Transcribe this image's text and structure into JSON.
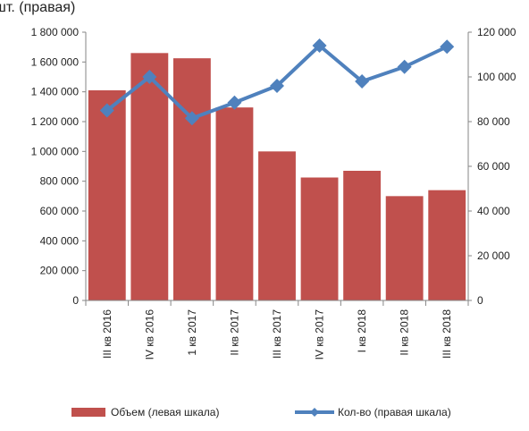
{
  "title_fragment": "шт. (правая)",
  "chart_data": {
    "type": "bar+line",
    "categories": [
      "III кв 2016",
      "IV кв 2016",
      "1 кв 2017",
      "II кв 2017",
      "III кв 2017",
      "IV кв 2017",
      "I кв 2018",
      "II кв 2018",
      "III кв 2018"
    ],
    "series": [
      {
        "name": "Объем (левая шкала)",
        "type": "bar",
        "axis": "left",
        "color": "#c0504d",
        "values": [
          1410000,
          1660000,
          1625000,
          1295000,
          1000000,
          825000,
          870000,
          700000,
          740000
        ]
      },
      {
        "name": "Кол-во (правая шкала)",
        "type": "line",
        "axis": "right",
        "color": "#4f81bd",
        "values": [
          85000,
          100000,
          81500,
          88500,
          96000,
          114000,
          98000,
          104500,
          113500
        ]
      }
    ],
    "ylim_left": [
      0,
      1800000
    ],
    "ylim_right": [
      0,
      120000
    ],
    "yticks_left": [
      "0",
      "200 000",
      "400 000",
      "600 000",
      "800 000",
      "1 000 000",
      "1 200 000",
      "1 400 000",
      "1 600 000",
      "1 800 000"
    ],
    "yticks_right": [
      "0",
      "20 000",
      "40 000",
      "60 000",
      "80 000",
      "100 000",
      "120 000"
    ],
    "grid": false,
    "legend": "bottom"
  }
}
